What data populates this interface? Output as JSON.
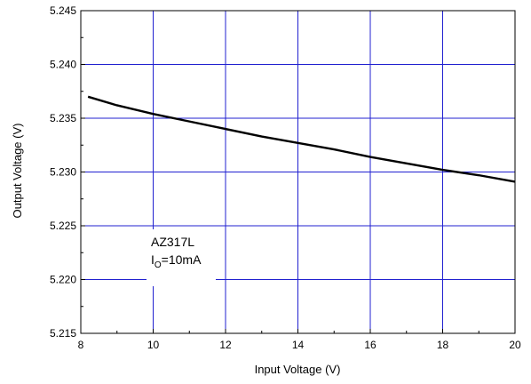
{
  "chart_data": {
    "type": "line",
    "xlabel": "Input Voltage (V)",
    "ylabel": "Output Voltage (V)",
    "xlim": [
      8,
      20
    ],
    "ylim": [
      5.215,
      5.245
    ],
    "x_ticks": [
      "8",
      "10",
      "12",
      "14",
      "16",
      "18",
      "20"
    ],
    "y_ticks": [
      "5.215",
      "5.220",
      "5.225",
      "5.230",
      "5.235",
      "5.240",
      "5.245"
    ],
    "grid": true,
    "grid_color": "#2020d0",
    "line_color": "#000000",
    "series": [
      {
        "x": [
          8.2,
          9,
          10,
          11,
          12,
          13,
          14,
          15,
          16,
          17,
          18,
          19,
          20
        ],
        "values": [
          5.237,
          5.2362,
          5.2354,
          5.2347,
          5.234,
          5.2333,
          5.2327,
          5.2321,
          5.2314,
          5.2308,
          5.2302,
          5.2297,
          5.2291
        ]
      }
    ],
    "annotation": {
      "line1": "AZ317L",
      "line2_main": "I",
      "line2_sub": "O",
      "line2_rest": "=10mA"
    }
  }
}
